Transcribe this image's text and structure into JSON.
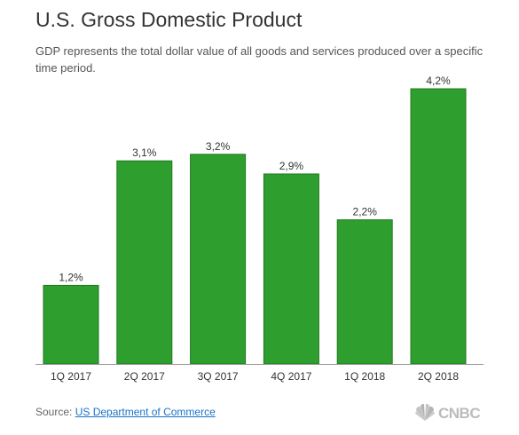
{
  "header": {
    "title": "U.S. Gross Domestic Product",
    "subtitle": "GDP represents the total dollar value of all goods and services produced over a specific time period."
  },
  "footer": {
    "source_prefix": "Source: ",
    "source_link": "US Department of Commerce",
    "logo_text": "CNBC"
  },
  "colors": {
    "bar": "#2e9e2e",
    "bar_border": "#1f7a1f",
    "baseline": "#999999",
    "link": "#1a73c8"
  },
  "chart_data": {
    "type": "bar",
    "title": "U.S. Gross Domestic Product",
    "categories": [
      "1Q 2017",
      "2Q 2017",
      "3Q 2017",
      "4Q 2017",
      "1Q 2018",
      "2Q 2018"
    ],
    "values": [
      1.2,
      3.1,
      3.2,
      2.9,
      2.2,
      4.2
    ],
    "data_labels": [
      "1,2%",
      "3,1%",
      "3,2%",
      "2,9%",
      "2,2%",
      "4,2%"
    ],
    "xlabel": "",
    "ylabel": "",
    "ylim": [
      0,
      4.2
    ],
    "grid": false,
    "legend": "none"
  }
}
